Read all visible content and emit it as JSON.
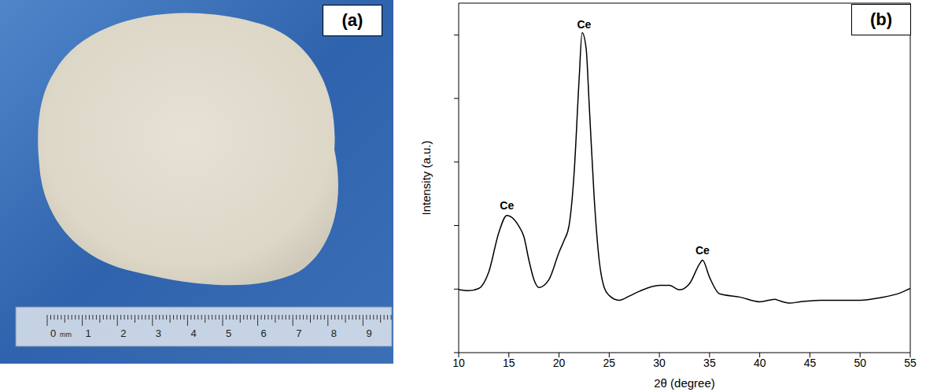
{
  "photo": {
    "panel_label": "(a)",
    "ruler_labels": [
      "0",
      "1",
      "2",
      "3",
      "4",
      "5",
      "6",
      "7",
      "8",
      "9"
    ],
    "ruler_unit": "mm"
  },
  "chart_data": {
    "type": "line",
    "panel_label": "(b)",
    "x_label": "2θ (degree)",
    "y_label": "Intensity (a.u.)",
    "x": [
      10,
      11,
      12,
      13,
      14,
      14.8,
      15.5,
      16,
      16.5,
      17,
      17.5,
      18,
      19,
      20,
      20.5,
      21,
      21.5,
      22,
      22.3,
      22.7,
      23,
      23.5,
      24,
      24.5,
      25,
      26,
      27,
      28,
      30,
      31,
      32,
      33,
      34,
      34.3,
      35,
      36,
      38,
      40,
      41.5,
      42,
      43,
      44,
      46,
      48,
      50,
      52,
      54,
      55
    ],
    "values": [
      19.8,
      19.5,
      20.2,
      25.4,
      37.8,
      43.2,
      42,
      39.8,
      36.5,
      29.1,
      23,
      20.5,
      23,
      31.6,
      35.3,
      40,
      56.3,
      85.9,
      100.7,
      95.8,
      78.5,
      48.9,
      29.1,
      20.5,
      18,
      16.5,
      17.8,
      19.3,
      21.2,
      21.2,
      19.8,
      21.7,
      27.9,
      29.1,
      23.7,
      18.5,
      17.5,
      16,
      16.8,
      16.3,
      15.6,
      16,
      16.5,
      16.5,
      16.5,
      17.3,
      18.8,
      20.2
    ],
    "color": "#000000",
    "xlim": [
      10,
      55
    ],
    "xticks": [
      10,
      15,
      20,
      25,
      30,
      35,
      40,
      45,
      50,
      55
    ],
    "ylim": [
      0,
      110
    ],
    "yticks": [
      0,
      20,
      40,
      60,
      80,
      100
    ],
    "tick_labels": "x",
    "grid": false,
    "annotations": [
      {
        "x": 14.8,
        "y": 44,
        "text": "Ce"
      },
      {
        "x": 22.5,
        "y": 101,
        "text": "Ce"
      },
      {
        "x": 34.3,
        "y": 30,
        "text": "Ce"
      }
    ]
  }
}
